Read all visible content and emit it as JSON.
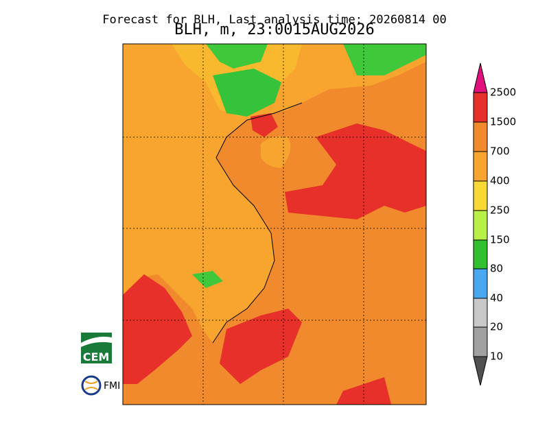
{
  "header": {
    "title": "Forecast for BLH, Last analysis time: 20260814 00",
    "subtitle": "BLH, m, 23:0015AUG2026"
  },
  "colorbar": {
    "labels": [
      "2500",
      "1500",
      "700",
      "400",
      "250",
      "150",
      "80",
      "40",
      "20",
      "10"
    ]
  },
  "logos": [
    "CEM",
    "FMI"
  ]
}
